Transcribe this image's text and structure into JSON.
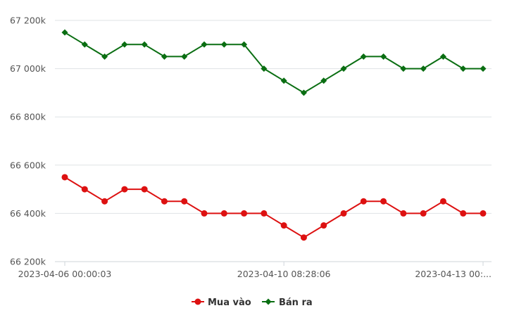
{
  "chart_data": {
    "type": "line",
    "y_ticks": [
      "66 200k",
      "66 400k",
      "66 600k",
      "66 800k",
      "67 000k",
      "67 200k"
    ],
    "y_tick_values": [
      66200,
      66400,
      66600,
      66800,
      67000,
      67200
    ],
    "ylim": [
      66200,
      67200
    ],
    "x_tick_labels": [
      {
        "index": 0,
        "label": "2023-04-06 00:00:03"
      },
      {
        "index": 11,
        "label": "2023-04-10 08:28:06"
      },
      {
        "index": 21,
        "label": "2023-04-13 00:..."
      }
    ],
    "point_count": 22,
    "grid": true,
    "legend_position": "bottom",
    "series": [
      {
        "name": "Mua vào",
        "color": "#dd1111",
        "marker": "circle",
        "values": [
          66550,
          66500,
          66450,
          66500,
          66500,
          66450,
          66450,
          66400,
          66400,
          66400,
          66400,
          66350,
          66300,
          66350,
          66400,
          66450,
          66450,
          66400,
          66400,
          66450,
          66400,
          66400
        ]
      },
      {
        "name": "Bán ra",
        "color": "#0a6e12",
        "marker": "diamond",
        "values": [
          67150,
          67100,
          67050,
          67100,
          67100,
          67050,
          67050,
          67100,
          67100,
          67100,
          67000,
          66950,
          66900,
          66950,
          67000,
          67050,
          67050,
          67000,
          67000,
          67050,
          67000,
          67000
        ]
      }
    ]
  }
}
